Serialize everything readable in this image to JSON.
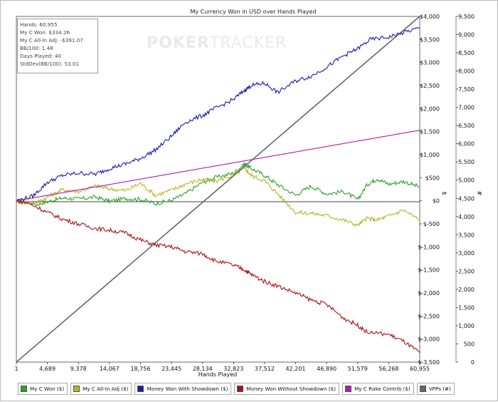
{
  "chart_data": {
    "type": "line",
    "title": "My Currency Won in USD over Hands Played",
    "xlabel": "Hands Played",
    "ylabel_left": "",
    "ylabel_right_dollar": "$",
    "ylabel_right_count": "#",
    "x_ticks": [
      "1",
      "4,689",
      "9,378",
      "14,067",
      "18,756",
      "23,445",
      "28,134",
      "32,823",
      "37,512",
      "42,201",
      "46,890",
      "51,579",
      "56,268",
      "60,955"
    ],
    "xlim": [
      1,
      60955
    ],
    "y_dollar_ticks": [
      "$4,000",
      "$3,500",
      "$3,000",
      "$2,500",
      "$2,000",
      "$1,500",
      "$1,000",
      "$500",
      "$0",
      "$-500",
      "$-1,000",
      "$-1,500",
      "$-2,000",
      "$-2,500",
      "$-3,000",
      "$-3,500"
    ],
    "ylim_dollar": [
      -3500,
      4000
    ],
    "y_count_ticks": [
      "9,500",
      "9,000",
      "8,500",
      "8,000",
      "7,500",
      "7,000",
      "6,500",
      "6,000",
      "5,500",
      "5,000",
      "4,500",
      "4,000",
      "3,500",
      "3,000",
      "2,500",
      "2,000",
      "1,500",
      "1,000",
      "500",
      "0"
    ],
    "ylim_count": [
      0,
      9500
    ],
    "grid": false,
    "legend_position": "bottom",
    "series": [
      {
        "name": "My C Won ($)",
        "color": "#2aa12a",
        "x": [
          1,
          3000,
          5000,
          7000,
          9378,
          12000,
          14067,
          16500,
          18756,
          21000,
          23445,
          25500,
          28134,
          30000,
          32823,
          34500,
          35500,
          37512,
          39500,
          42201,
          44500,
          46890,
          49500,
          51579,
          53000,
          54500,
          56268,
          58500,
          60955
        ],
        "values": [
          0,
          -80,
          -10,
          60,
          40,
          80,
          -10,
          50,
          30,
          -60,
          10,
          150,
          400,
          500,
          600,
          800,
          700,
          550,
          350,
          120,
          320,
          150,
          200,
          20,
          350,
          480,
          360,
          420,
          300
        ]
      },
      {
        "name": "My C All-In Adj ($)",
        "color": "#b5b522",
        "x": [
          1,
          3000,
          5000,
          7000,
          9378,
          12000,
          14067,
          16500,
          18756,
          21000,
          23445,
          25500,
          28134,
          30000,
          32823,
          34500,
          35500,
          37512,
          39500,
          42201,
          44500,
          46890,
          49500,
          51579,
          53000,
          54500,
          56268,
          58500,
          60955
        ],
        "values": [
          0,
          -40,
          100,
          240,
          200,
          320,
          260,
          220,
          380,
          120,
          230,
          360,
          470,
          420,
          560,
          700,
          550,
          430,
          150,
          -250,
          -270,
          -320,
          -420,
          -530,
          -380,
          -420,
          -330,
          -200,
          -420
        ]
      },
      {
        "name": "Money Won With Showdown ($)",
        "color": "#1a1ab0",
        "x": [
          1,
          2500,
          4689,
          7000,
          9378,
          12000,
          14067,
          16500,
          18756,
          21000,
          23445,
          25500,
          28134,
          30000,
          32823,
          34500,
          35500,
          37512,
          39500,
          42201,
          44500,
          46890,
          49500,
          51579,
          53500,
          56268,
          58500,
          60955
        ],
        "values": [
          0,
          100,
          400,
          550,
          600,
          580,
          700,
          800,
          920,
          1100,
          1400,
          1700,
          1850,
          2000,
          2200,
          2400,
          2500,
          2550,
          2350,
          2600,
          2700,
          2900,
          3150,
          3300,
          3500,
          3550,
          3650,
          3750
        ]
      },
      {
        "name": "Money Won Without Showdown ($)",
        "color": "#aa1111",
        "x": [
          1,
          2000,
          4689,
          7000,
          9378,
          12000,
          14067,
          16500,
          18756,
          21000,
          23445,
          25500,
          28134,
          30000,
          32823,
          34500,
          35500,
          37512,
          39500,
          42201,
          44500,
          46890,
          49500,
          51579,
          53000,
          56268,
          58500,
          60955
        ],
        "values": [
          0,
          -60,
          -250,
          -400,
          -500,
          -600,
          -640,
          -700,
          -850,
          -960,
          -1000,
          -1100,
          -1150,
          -1300,
          -1400,
          -1500,
          -1600,
          -1750,
          -1850,
          -2000,
          -2150,
          -2250,
          -2550,
          -2700,
          -2850,
          -2900,
          -3050,
          -3300
        ]
      },
      {
        "name": "My C Rake Contrib ($)",
        "color": "#b218b2",
        "x": [
          1,
          60955
        ],
        "values": [
          0,
          1530
        ]
      },
      {
        "name": "VPPs (#)",
        "axis": "right",
        "color": "#666666",
        "x": [
          1,
          5000,
          10000,
          15000,
          20000,
          25000,
          30000,
          35000,
          40000,
          45000,
          50000,
          55000,
          60955
        ],
        "values": [
          0,
          780,
          1560,
          2340,
          3120,
          3900,
          4680,
          5460,
          6240,
          7020,
          7800,
          8580,
          9500
        ]
      }
    ],
    "stats": [
      "Hands: 60,955",
      "My C Won: $334.26",
      "My C All-In Adj: -$391.07",
      "BB/100: 1.48",
      "Days Played: 40",
      "StdDev(BB/100): 53.01"
    ]
  },
  "watermark": {
    "bold": "POKER",
    "light": "TRACKER"
  }
}
